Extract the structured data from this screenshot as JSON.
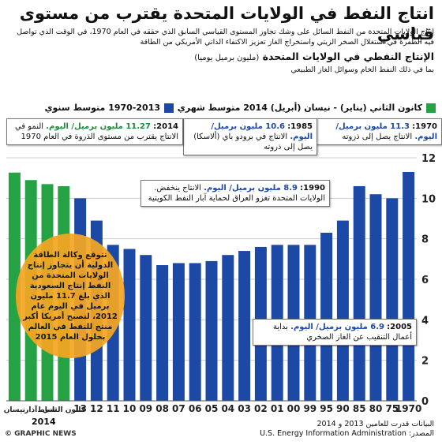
{
  "title": "انتاج النفط في الولايات المتحدة يقترب من مستوى قياسي",
  "intro": "إنتاج الولايات المتحدة من النفط السائل على وشك تجاوز المستوى القياسي السابق الذي حققه في العام 1970، في الوقت الذي تواصل فيه الطفرة في استغلال الصخر الزيتي واستخراج الغاز تعزيز الاكتفاء الذاتي الأمريكي من الطاقة",
  "subtitle": "الإنتاج النفطي في الولايات المتحدة",
  "subtitle_unit": "(مليون برميل يوميا)",
  "note": "بما في ذلك النفط الخام وسوائل الغاز الطبيعي",
  "legend": {
    "monthly": "كانون الثاني (يناير) - نيسان (أبريل) 2014 متوسط شهري",
    "annual": "1970-2013 متوسط سنوي"
  },
  "colors": {
    "annual": "#1d49a6",
    "monthly": "#25a244",
    "circle": "#f5a623"
  },
  "chart_data": {
    "type": "bar",
    "ylim": [
      0,
      12
    ],
    "yticks": [
      0,
      2,
      4,
      6,
      8,
      10,
      12
    ],
    "grid": true,
    "series": [
      {
        "name": "1970-2013 متوسط سنوي",
        "categories": [
          "1970",
          "75",
          "80",
          "85",
          "90",
          "95",
          "99",
          "00",
          "01",
          "02",
          "03",
          "04",
          "05",
          "06",
          "07",
          "08",
          "09",
          "10",
          "11",
          "12",
          "13"
        ],
        "values": [
          11.3,
          10.0,
          10.2,
          10.6,
          8.9,
          8.3,
          7.7,
          7.7,
          7.7,
          7.6,
          7.4,
          7.2,
          6.9,
          6.8,
          6.8,
          6.7,
          7.2,
          7.5,
          7.7,
          8.9,
          10.0
        ]
      },
      {
        "name": "كانون الثاني (يناير) - نيسان (أبريل) 2014 متوسط شهري",
        "categories": [
          "كانون الثاني",
          "شباط",
          "آذار",
          "نيسان"
        ],
        "values": [
          10.6,
          10.7,
          10.9,
          11.27
        ]
      }
    ],
    "year_label": "2014"
  },
  "callouts": {
    "c1970": {
      "year": "1970:",
      "value": "11.3 مليون برميل/ اليوم.",
      "text": "الانتاج يصل إلى ذروته"
    },
    "c1985": {
      "year": "1985:",
      "value": "10.6 مليون برميل/ اليوم.",
      "text": "الانتاج في برودو باي (ألاسكا) يصل إلى ذروته"
    },
    "c2014": {
      "year": "2014:",
      "value": "11.27 مليون برميل/ اليوم.",
      "text": "النمو في الانتاج يقترب من مستوى الذروة في العام 1970"
    },
    "c1990": {
      "year": "1990:",
      "value": "8.9 مليون برميل/ اليوم.",
      "text": "الانتاج ينخفض. الولايات المتحدة تغزو العراق لحماية آبار النفط الكويتية"
    },
    "c2005": {
      "year": "2005:",
      "value": "6.9 مليون برميل/ اليوم.",
      "text": "بداية أعمال التنقيب عن الغاز الصخري"
    }
  },
  "circle_text": "تتوقع وكالة الطاقة الدولية أن يتجاوز إنتاج الولايات المتحدة من النفط إنتاج السعودية الذي بلغ 11.7 مليون برميل في اليوم عام 2012، لتصبح أمريكا أكبر منتج للنفط في العالم بحلول العام 2015",
  "footer": {
    "source_label": "المصدر:",
    "source": "U.S. Energy Information Administration",
    "note": "البيانات قدرت للعامين 2013 و 2014",
    "credit": "© GRAPHIC NEWS"
  }
}
